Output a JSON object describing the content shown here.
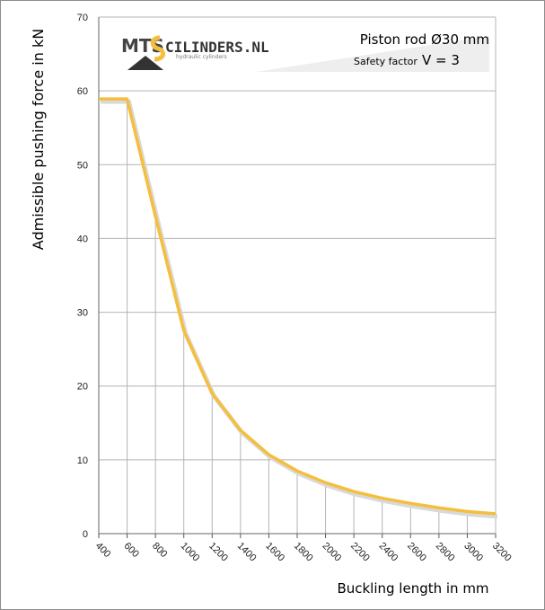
{
  "chart_data": {
    "type": "line",
    "ylabel": "Admissible pushing force in kN",
    "xlabel": "Buckling length in mm",
    "ylim": [
      0,
      70
    ],
    "y_ticks": [
      0,
      10,
      20,
      30,
      40,
      50,
      60,
      70
    ],
    "x_tick_labels": [
      "400",
      "600",
      "800",
      "1000",
      "1200",
      "1400",
      "1600",
      "1800",
      "2000",
      "2200",
      "2400",
      "2600",
      "2800",
      "3000",
      "3200"
    ],
    "grid": true,
    "series": [
      {
        "color": "#F5BE3C",
        "x": [
          400,
          600,
          800,
          1000,
          1200,
          1400,
          1600,
          1800,
          2000,
          2200,
          2400,
          2600,
          2800,
          3000,
          3200
        ],
        "values": [
          58.9,
          58.9,
          43.0,
          27.5,
          19.0,
          14.0,
          10.7,
          8.5,
          6.9,
          5.7,
          4.8,
          4.1,
          3.5,
          3.0,
          2.7
        ]
      }
    ],
    "annotations": {
      "line1": "Piston rod Ø30 mm",
      "line2_label": "Safety factor",
      "line2_value": "V = 3"
    }
  },
  "logo": {
    "brand": "MTS",
    "name": "CILINDERS.NL",
    "tagline": "hydraulic cylinders"
  }
}
